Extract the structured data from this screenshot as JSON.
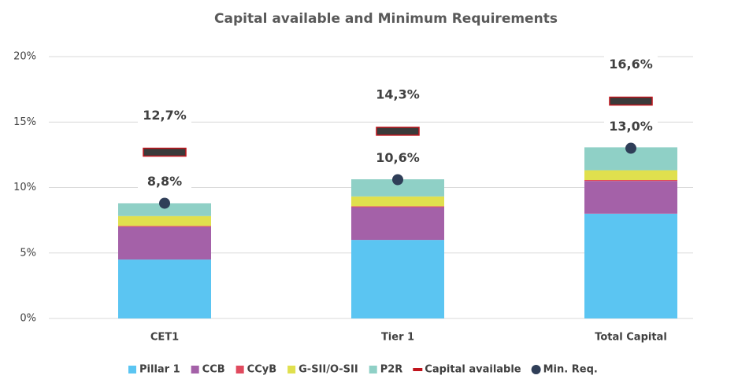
{
  "chart_data": {
    "type": "bar",
    "stacked": true,
    "title": "Capital available and Minimum Requirements",
    "categories": [
      "CET1",
      "Tier 1",
      "Total Capital"
    ],
    "series": [
      {
        "name": "Pillar 1",
        "color": "#5bc5f2",
        "values": [
          4.5,
          6,
          8
        ]
      },
      {
        "name": "CCB",
        "color": "#a461a8",
        "values": [
          2.5,
          2.5,
          2.5
        ]
      },
      {
        "name": "CCyB",
        "color": "#e04a5e",
        "values": [
          0.07,
          0.07,
          0.07
        ]
      },
      {
        "name": "G-SII/O-SII",
        "color": "#e0e04e",
        "values": [
          0.75,
          0.75,
          0.75
        ]
      },
      {
        "name": "P2R",
        "color": "#8fd0c6",
        "values": [
          0.98,
          1.31,
          1.75
        ]
      }
    ],
    "markers": [
      {
        "name": "Capital available",
        "shape": "dash",
        "color": "#3a3a3a",
        "edge_color": "#c0141c",
        "values": [
          12.7,
          14.3,
          16.6
        ],
        "value_labels": [
          "12,7%",
          "14,3%",
          "16,6%"
        ]
      },
      {
        "name": "Min. Req.",
        "shape": "dot",
        "color": "#2f3e58",
        "values": [
          8.8,
          10.6,
          13.0
        ],
        "value_labels": [
          "8,8%",
          "10,6%",
          "13,0%"
        ]
      }
    ],
    "ylim": [
      0,
      20
    ],
    "yticks": [
      {
        "value": 0,
        "label": "0%"
      },
      {
        "value": 5,
        "label": "5%"
      },
      {
        "value": 10,
        "label": "10%"
      },
      {
        "value": 15,
        "label": "15%"
      },
      {
        "value": 20,
        "label": "20%"
      }
    ],
    "grid": true
  }
}
